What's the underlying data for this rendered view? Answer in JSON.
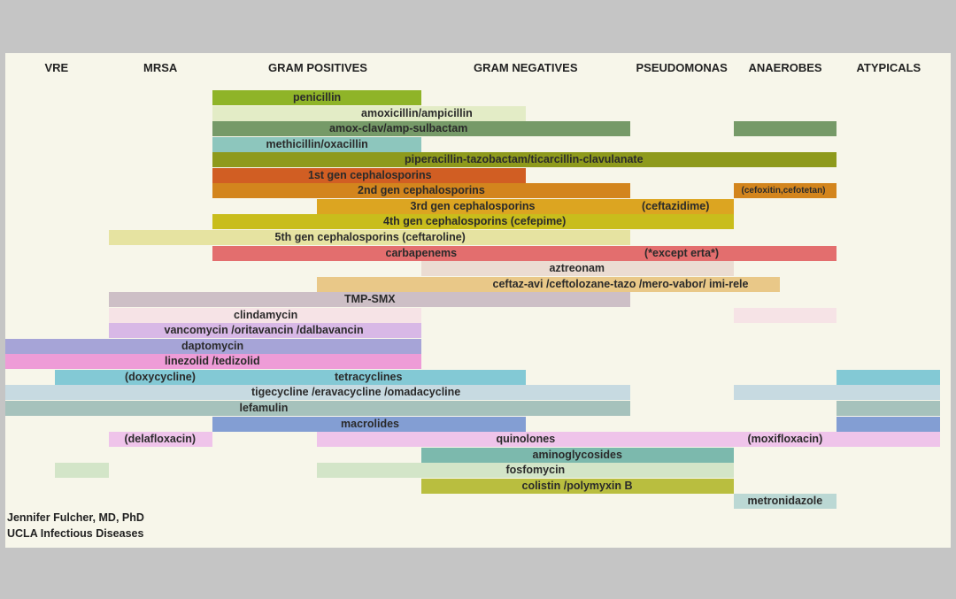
{
  "headers": [
    "VRE",
    "MRSA",
    "GRAM POSITIVES",
    "GRAM NEGATIVES",
    "PSEUDOMONAS",
    "ANAEROBES",
    "ATYPICALS"
  ],
  "rows": [
    {
      "labels": [
        "penicillin"
      ],
      "segments": [
        {
          "start": 2,
          "end": 4,
          "color": "#8fb428"
        }
      ]
    },
    {
      "labels": [
        "amoxicillin/ampicillin"
      ],
      "segments": [
        {
          "start": 2,
          "end": 5,
          "color": "#e3ecc6"
        }
      ]
    },
    {
      "labels": [
        "amox-clav/amp-sulbactam"
      ],
      "segments": [
        {
          "start": 2,
          "end": 6,
          "color": "#769a68"
        },
        {
          "start": 7,
          "end": 8,
          "color": "#769a68"
        }
      ]
    },
    {
      "labels": [
        "methicillin/oxacillin"
      ],
      "segments": [
        {
          "start": 2,
          "end": 4,
          "color": "#8dc6bd"
        }
      ]
    },
    {
      "labels": [
        "piperacillin-tazobactam/ticarcillin-clavulanate"
      ],
      "segments": [
        {
          "start": 2,
          "end": 8,
          "color": "#8e9a1c"
        }
      ]
    },
    {
      "labels": [
        "1st gen cephalosporins"
      ],
      "segments": [
        {
          "start": 2,
          "end": 5,
          "color": "#d15e23"
        }
      ]
    },
    {
      "labels": [
        "2nd gen cephalosporins",
        "(cefoxitin,cefotetan)"
      ],
      "segments": [
        {
          "start": 2,
          "end": 6,
          "color": "#d3851d"
        },
        {
          "start": 7,
          "end": 8,
          "color": "#d3851d"
        }
      ]
    },
    {
      "labels": [
        "3rd gen cephalosporins",
        "(ceftazidime)"
      ],
      "segments": [
        {
          "start": 3,
          "end": 7,
          "color": "#dca521"
        }
      ]
    },
    {
      "labels": [
        "4th gen cephalosporins (cefepime)"
      ],
      "segments": [
        {
          "start": 2,
          "end": 7,
          "color": "#c9bd1c"
        }
      ]
    },
    {
      "labels": [
        "5th gen cephalosporins (ceftaroline)"
      ],
      "segments": [
        {
          "start": 1,
          "end": 6,
          "color": "#e6e3a1"
        }
      ]
    },
    {
      "labels": [
        "carbapenems",
        "(*except erta*)"
      ],
      "segments": [
        {
          "start": 2,
          "end": 8,
          "color": "#e36e6e"
        }
      ]
    },
    {
      "labels": [
        "aztreonam"
      ],
      "segments": [
        {
          "start": 4,
          "end": 7,
          "color": "#ebdcd2"
        }
      ]
    },
    {
      "labels": [
        "ceftaz-avi /ceftolozane-tazo /mero-vabor/ imi-rele"
      ],
      "segments": [
        {
          "start": 3,
          "end": 7.45,
          "color": "#e9c888"
        }
      ]
    },
    {
      "labels": [
        "TMP-SMX"
      ],
      "segments": [
        {
          "start": 1,
          "end": 6,
          "color": "#cdbfc6"
        }
      ]
    },
    {
      "labels": [
        "clindamycin"
      ],
      "segments": [
        {
          "start": 1,
          "end": 4,
          "color": "#f6e3e6"
        },
        {
          "start": 7,
          "end": 8,
          "color": "#f6e3e6"
        }
      ]
    },
    {
      "labels": [
        "vancomycin /oritavancin /dalbavancin"
      ],
      "segments": [
        {
          "start": 1,
          "end": 4,
          "color": "#d8b8e6"
        }
      ]
    },
    {
      "labels": [
        "daptomycin"
      ],
      "segments": [
        {
          "start": 0,
          "end": 4,
          "color": "#a6a4d7"
        }
      ]
    },
    {
      "labels": [
        "linezolid /tedizolid"
      ],
      "segments": [
        {
          "start": 0,
          "end": 4,
          "color": "#ee9cd7"
        }
      ]
    },
    {
      "labels": [
        "(doxycycline)",
        "tetracyclines"
      ],
      "segments": [
        {
          "start": 0.48,
          "end": 5,
          "color": "#83c9d5"
        },
        {
          "start": 8,
          "end": 9,
          "color": "#83c9d5"
        }
      ]
    },
    {
      "labels": [
        "tigecycline /eravacycline /omadacycline"
      ],
      "segments": [
        {
          "start": 0,
          "end": 6,
          "color": "#c7dae1"
        },
        {
          "start": 7,
          "end": 9,
          "color": "#c7dae1"
        }
      ]
    },
    {
      "labels": [
        "lefamulin"
      ],
      "segments": [
        {
          "start": 0,
          "end": 6,
          "color": "#a6c2bc"
        },
        {
          "start": 8,
          "end": 9,
          "color": "#a6c2bc"
        }
      ]
    },
    {
      "labels": [
        "macrolides"
      ],
      "segments": [
        {
          "start": 2,
          "end": 5,
          "color": "#839ed3"
        },
        {
          "start": 8,
          "end": 9,
          "color": "#839ed3"
        }
      ]
    },
    {
      "labels": [
        "(delafloxacin)",
        "quinolones",
        "(moxifloxacin)"
      ],
      "segments": [
        {
          "start": 1,
          "end": 2,
          "color": "#efc4ea"
        },
        {
          "start": 3,
          "end": 9,
          "color": "#efc4ea"
        }
      ]
    },
    {
      "labels": [
        "aminoglycosides"
      ],
      "segments": [
        {
          "start": 4,
          "end": 7,
          "color": "#7cb9ad"
        }
      ]
    },
    {
      "labels": [
        "fosfomycin"
      ],
      "segments": [
        {
          "start": 0.48,
          "end": 1,
          "color": "#d3e5c8"
        },
        {
          "start": 3,
          "end": 7,
          "color": "#d3e5c8"
        }
      ]
    },
    {
      "labels": [
        "colistin /polymyxin B"
      ],
      "segments": [
        {
          "start": 4,
          "end": 7,
          "color": "#b9be3f"
        }
      ]
    },
    {
      "labels": [
        "metronidazole"
      ],
      "segments": [
        {
          "start": 7,
          "end": 8,
          "color": "#bbd8d4"
        }
      ]
    }
  ],
  "credit": [
    "Jennifer Fulcher, MD, PhD",
    "UCLA Infectious Diseases"
  ]
}
